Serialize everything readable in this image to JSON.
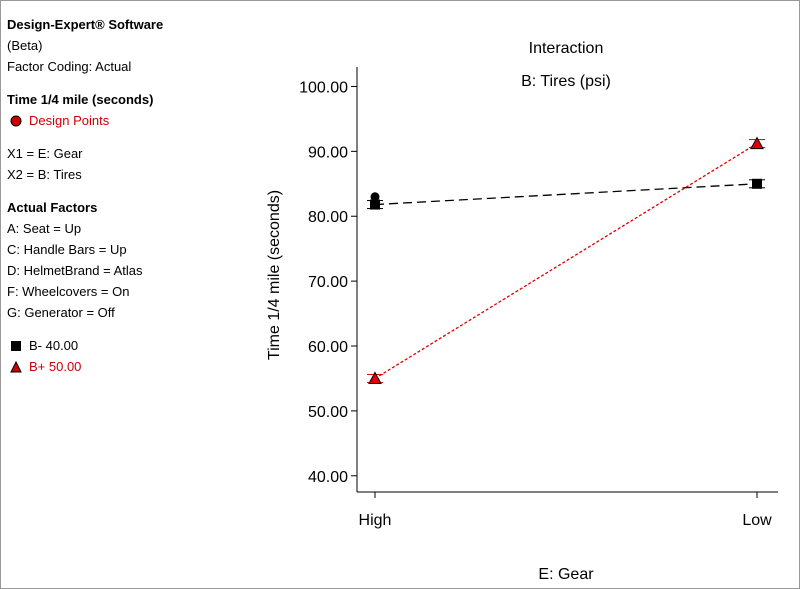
{
  "sidebar": {
    "software": "Design-Expert® Software",
    "beta": "(Beta)",
    "coding": "Factor Coding: Actual",
    "response": "Time 1/4 mile (seconds)",
    "design_points": "Design Points",
    "x1": "X1 = E: Gear",
    "x2": "X2 = B: Tires",
    "actual_factors_title": "Actual Factors",
    "factors": [
      "A: Seat = Up",
      "C: Handle Bars = Up",
      "D: HelmetBrand = Atlas",
      "F: Wheelcovers = On",
      "G: Generator = Off"
    ],
    "legend": [
      {
        "label": "B- 40.00",
        "marker": "square",
        "color": "#000000"
      },
      {
        "label": "B+ 50.00",
        "marker": "triangle",
        "color": "#cc0000"
      }
    ]
  },
  "chart_data": {
    "type": "line",
    "title": "Interaction",
    "subtitle": "B: Tires (psi)",
    "xlabel": "E: Gear",
    "ylabel": "Time 1/4 mile (seconds)",
    "categories": [
      "High",
      "Low"
    ],
    "yticks": [
      "40.00",
      "50.00",
      "60.00",
      "70.00",
      "80.00",
      "90.00",
      "100.00"
    ],
    "ylim": [
      37.5,
      103
    ],
    "series": [
      {
        "name": "B- 40.00",
        "values": [
          81.8,
          85.0
        ],
        "color": "#000000",
        "marker": "square",
        "line": "dashed"
      },
      {
        "name": "B+ 50.00",
        "values": [
          55.0,
          91.2
        ],
        "color": "#e00000",
        "marker": "triangle",
        "line": "dotted"
      }
    ],
    "design_points": [
      {
        "category": "High",
        "value": 83.0
      }
    ]
  }
}
